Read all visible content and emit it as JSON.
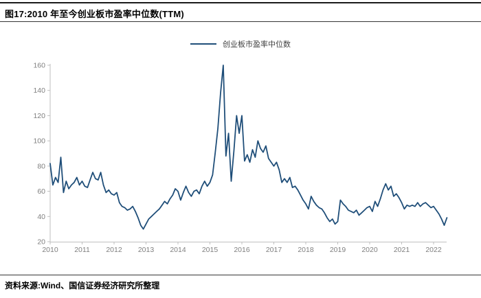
{
  "figure": {
    "title": "图17:2010 年至今创业板市盈率中位数(TTM)",
    "source": "资料来源:Wind、国信证券经济研究所整理"
  },
  "legend": {
    "label": "创业板市盈率中位数"
  },
  "colors": {
    "line": "#1f4e79",
    "axis": "#bfbfbf",
    "tick_label": "#7f7f7f",
    "rule": "#1a1a1a"
  },
  "chart_data": {
    "type": "line",
    "title": "2010 年至今创业板市盈率中位数(TTM)",
    "xlabel": "",
    "ylabel": "",
    "ylim": [
      20,
      160
    ],
    "y_ticks": [
      20,
      40,
      60,
      80,
      100,
      120,
      140,
      160
    ],
    "x_ticks": [
      2010,
      2011,
      2012,
      2013,
      2014,
      2015,
      2016,
      2017,
      2018,
      2019,
      2020,
      2021,
      2022
    ],
    "grid": false,
    "legend_position": "top-center",
    "series": [
      {
        "name": "创业板市盈率中位数",
        "start_year": 2010,
        "points_per_year": 12,
        "values": [
          82,
          65,
          71,
          67,
          87,
          59,
          68,
          62,
          65,
          67,
          71,
          65,
          68,
          64,
          63,
          69,
          75,
          70,
          69,
          75,
          65,
          59,
          61,
          58,
          57,
          59,
          51,
          48,
          47,
          45,
          46,
          48,
          44,
          39,
          33,
          30,
          34,
          38,
          40,
          42,
          44,
          46,
          49,
          52,
          50,
          54,
          57,
          62,
          60,
          53,
          59,
          64,
          59,
          56,
          60,
          61,
          58,
          64,
          68,
          64,
          67,
          73,
          91,
          110,
          138,
          160,
          88,
          106,
          68,
          92,
          120,
          106,
          120,
          84,
          89,
          83,
          93,
          87,
          100,
          94,
          91,
          96,
          86,
          83,
          80,
          83,
          77,
          67,
          70,
          67,
          71,
          63,
          64,
          61,
          57,
          53,
          50,
          46,
          56,
          52,
          49,
          47,
          46,
          43,
          39,
          36,
          38,
          34,
          36,
          53,
          50,
          48,
          45,
          44,
          43,
          45,
          41,
          43,
          45,
          47,
          48,
          44,
          52,
          48,
          54,
          61,
          66,
          61,
          64,
          56,
          58,
          55,
          51,
          46,
          49,
          48,
          49,
          48,
          51,
          48,
          50,
          51,
          49,
          47,
          48,
          45,
          42,
          38,
          33,
          39
        ]
      }
    ]
  }
}
